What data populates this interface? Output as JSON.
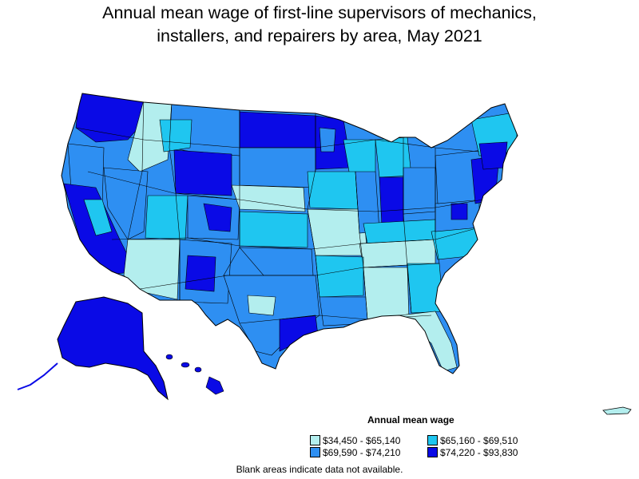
{
  "title": {
    "line1": "Annual mean wage of first-line supervisors of mechanics,",
    "line2": "installers, and repairers by area, May 2021"
  },
  "legend": {
    "title": "Annual mean wage",
    "items": [
      {
        "label": "$34,450 - $65,140",
        "color": "#b3eeee"
      },
      {
        "label": "$65,160 - $69,510",
        "color": "#1fc6f0"
      },
      {
        "label": "$69,590 - $74,210",
        "color": "#2e8ff2"
      },
      {
        "label": "$74,220 - $93,830",
        "color": "#0a0ae6"
      }
    ]
  },
  "footnote": "Blank areas indicate data not available.",
  "colors": {
    "outline": "#000000",
    "background": "#ffffff"
  }
}
